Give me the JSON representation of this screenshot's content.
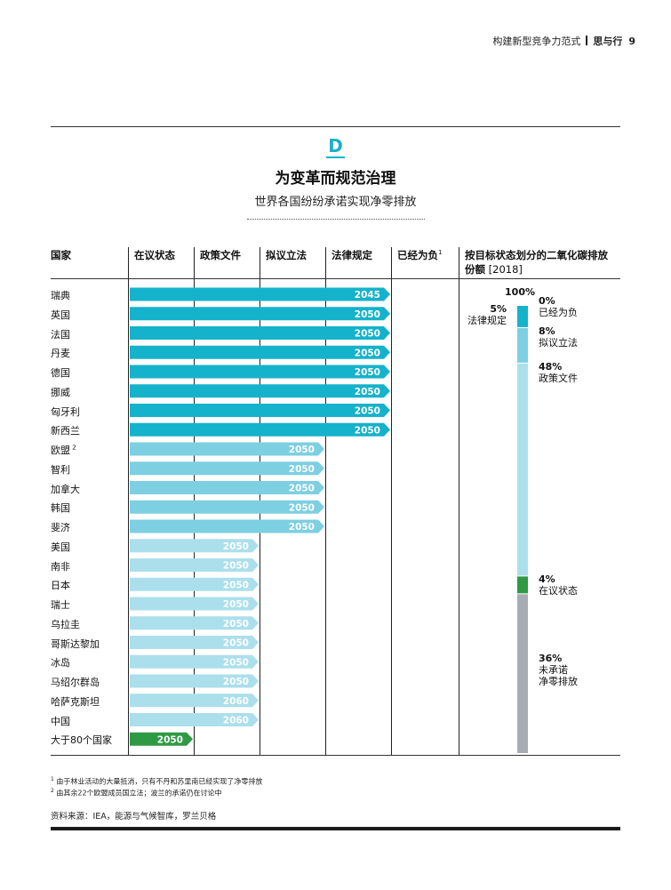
{
  "header": {
    "book": "构建新型竞争力范式",
    "section": "思与行",
    "page": "9"
  },
  "figure": {
    "letter": "D",
    "title": "为变革而规范治理",
    "subtitle": "世界各国纷纷承诺实现净零排放"
  },
  "columns": [
    "国家",
    "在议状态",
    "政策文件",
    "拟议立法",
    "法律规定",
    "已经为负"
  ],
  "column_sup": "1",
  "stack_header": {
    "line1": "按目标状态划分的二氧化碳排放",
    "line2_a": "份额",
    "line2_b": " [2018]"
  },
  "colors": {
    "law": "#15b2cb",
    "proposed": "#7dcfe2",
    "policy": "#abdfec",
    "debate": "#2f9a44",
    "none": "#a6adb2"
  },
  "chart_data": {
    "type": "table",
    "status_order": [
      "在议状态",
      "政策文件",
      "拟议立法",
      "法律规定",
      "已经为负"
    ],
    "rows": [
      {
        "country": "瑞典",
        "status": "法律规定",
        "year": "2045"
      },
      {
        "country": "英国",
        "status": "法律规定",
        "year": "2050"
      },
      {
        "country": "法国",
        "status": "法律规定",
        "year": "2050"
      },
      {
        "country": "丹麦",
        "status": "法律规定",
        "year": "2050"
      },
      {
        "country": "德国",
        "status": "法律规定",
        "year": "2050"
      },
      {
        "country": "挪威",
        "status": "法律规定",
        "year": "2050"
      },
      {
        "country": "匈牙利",
        "status": "法律规定",
        "year": "2050"
      },
      {
        "country": "新西兰",
        "status": "法律规定",
        "year": "2050"
      },
      {
        "country": "欧盟",
        "sup": "2",
        "status": "拟议立法",
        "year": "2050"
      },
      {
        "country": "智利",
        "status": "拟议立法",
        "year": "2050"
      },
      {
        "country": "加拿大",
        "status": "拟议立法",
        "year": "2050"
      },
      {
        "country": "韩国",
        "status": "拟议立法",
        "year": "2050"
      },
      {
        "country": "斐济",
        "status": "拟议立法",
        "year": "2050"
      },
      {
        "country": "美国",
        "status": "政策文件",
        "year": "2050"
      },
      {
        "country": "南非",
        "status": "政策文件",
        "year": "2050"
      },
      {
        "country": "日本",
        "status": "政策文件",
        "year": "2050"
      },
      {
        "country": "瑞士",
        "status": "政策文件",
        "year": "2050"
      },
      {
        "country": "乌拉圭",
        "status": "政策文件",
        "year": "2050"
      },
      {
        "country": "哥斯达黎加",
        "status": "政策文件",
        "year": "2050"
      },
      {
        "country": "冰岛",
        "status": "政策文件",
        "year": "2050"
      },
      {
        "country": "马绍尔群岛",
        "status": "政策文件",
        "year": "2050"
      },
      {
        "country": "哈萨克斯坦",
        "status": "政策文件",
        "year": "2060"
      },
      {
        "country": "中国",
        "status": "政策文件",
        "year": "2060"
      },
      {
        "country": "大于80个国家",
        "status": "在议状态",
        "year": "2050"
      }
    ],
    "stacked_share": {
      "title": "按目标状态划分的二氧化碳排放份额 [2018]",
      "unit": "%",
      "total_label": "100%",
      "segments": [
        {
          "status": "已经为负",
          "value": 0,
          "label": "0%",
          "name": "已经为负"
        },
        {
          "status": "法律规定",
          "value": 5,
          "label": "5%",
          "name": "法律规定"
        },
        {
          "status": "拟议立法",
          "value": 8,
          "label": "8%",
          "name": "拟议立法"
        },
        {
          "status": "政策文件",
          "value": 48,
          "label": "48%",
          "name": "政策文件"
        },
        {
          "status": "在议状态",
          "value": 4,
          "label": "4%",
          "name": "在议状态"
        },
        {
          "status": "未承诺净零排放",
          "value": 36,
          "label": "36%",
          "name_lines": [
            "未承诺",
            "净零排放"
          ]
        }
      ]
    }
  },
  "footnotes": {
    "n1": "由于林业活动的大量抵消，只有不丹和苏里南已经实现了净零排放",
    "n2": "由其余22个欧盟成员国立法；波兰的承诺仍在讨论中"
  },
  "source": "资料来源：IEA，能源与气候智库，罗兰贝格"
}
